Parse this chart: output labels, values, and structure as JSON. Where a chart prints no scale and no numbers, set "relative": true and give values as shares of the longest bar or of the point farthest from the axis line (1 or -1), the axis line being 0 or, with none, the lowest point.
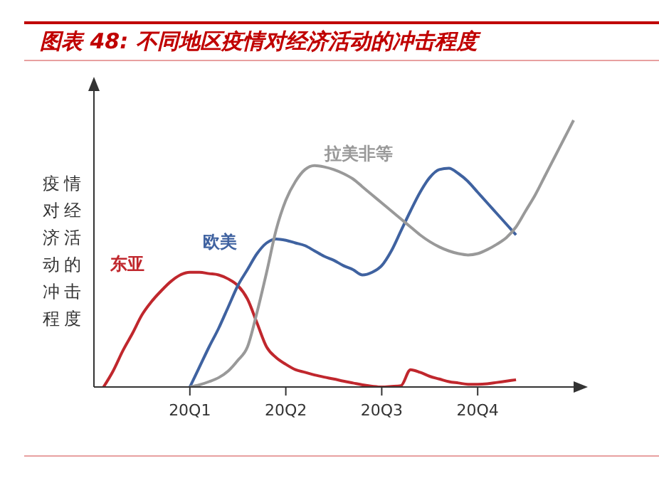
{
  "chart_data": {
    "type": "line",
    "title": "图表 48: 不同地区疫情对经济活动的冲击程度",
    "ylabel": "疫情对经济活动的冲击程度",
    "relative": true,
    "categories": [
      null,
      null,
      null,
      null,
      null,
      null,
      null,
      null,
      null,
      null,
      "20Q1",
      null,
      null,
      null,
      null,
      null,
      null,
      null,
      null,
      null,
      "20Q2",
      null,
      null,
      null,
      null,
      null,
      null,
      null,
      null,
      null,
      "20Q3",
      null,
      null,
      null,
      null,
      null,
      null,
      null,
      null,
      null,
      "20Q4",
      null,
      null,
      null,
      null,
      null,
      null,
      null,
      null,
      null,
      null
    ],
    "grid": false,
    "legend": false,
    "marker": "none",
    "line_style": "solid",
    "series": [
      {
        "name": "东亚",
        "color": "#c0272d",
        "values": [
          null,
          0,
          0.06,
          0.135,
          0.2,
          0.27,
          0.32,
          0.36,
          0.395,
          0.42,
          0.43,
          0.43,
          0.425,
          0.42,
          0.405,
          0.38,
          0.33,
          0.24,
          0.15,
          0.11,
          0.085,
          0.065,
          0.055,
          0.045,
          0.037,
          0.03,
          0.022,
          0.015,
          0.008,
          0.003,
          0,
          0.002,
          0.005,
          0.065,
          0.055,
          0.04,
          0.03,
          0.02,
          0.015,
          0.01,
          0.01,
          0.012,
          0.017,
          0.022,
          0.027,
          null,
          null,
          null,
          null,
          null,
          null
        ]
      },
      {
        "name": "欧美",
        "color": "#3f62a0",
        "values": [
          null,
          null,
          null,
          null,
          null,
          null,
          null,
          null,
          null,
          null,
          0,
          0.075,
          0.15,
          0.22,
          0.3,
          0.38,
          0.44,
          0.5,
          0.54,
          0.555,
          0.55,
          0.54,
          0.53,
          0.51,
          0.49,
          0.475,
          0.455,
          0.44,
          0.42,
          0.43,
          0.455,
          0.51,
          0.585,
          0.66,
          0.73,
          0.785,
          0.815,
          0.82,
          0.8,
          0.77,
          0.73,
          0.69,
          0.65,
          0.61,
          0.57,
          null,
          null,
          null,
          null,
          null,
          null
        ]
      },
      {
        "name": "拉美非等",
        "color": "#999999",
        "values": [
          null,
          null,
          null,
          null,
          null,
          null,
          null,
          null,
          null,
          null,
          0,
          0.008,
          0.02,
          0.035,
          0.06,
          0.1,
          0.15,
          0.28,
          0.43,
          0.59,
          0.7,
          0.77,
          0.815,
          0.83,
          0.825,
          0.815,
          0.8,
          0.78,
          0.75,
          0.72,
          0.69,
          0.66,
          0.63,
          0.6,
          0.57,
          0.545,
          0.525,
          0.51,
          0.5,
          0.495,
          0.5,
          0.515,
          0.535,
          0.56,
          0.6,
          0.66,
          0.72,
          0.79,
          0.86,
          0.93,
          1
        ]
      }
    ]
  }
}
